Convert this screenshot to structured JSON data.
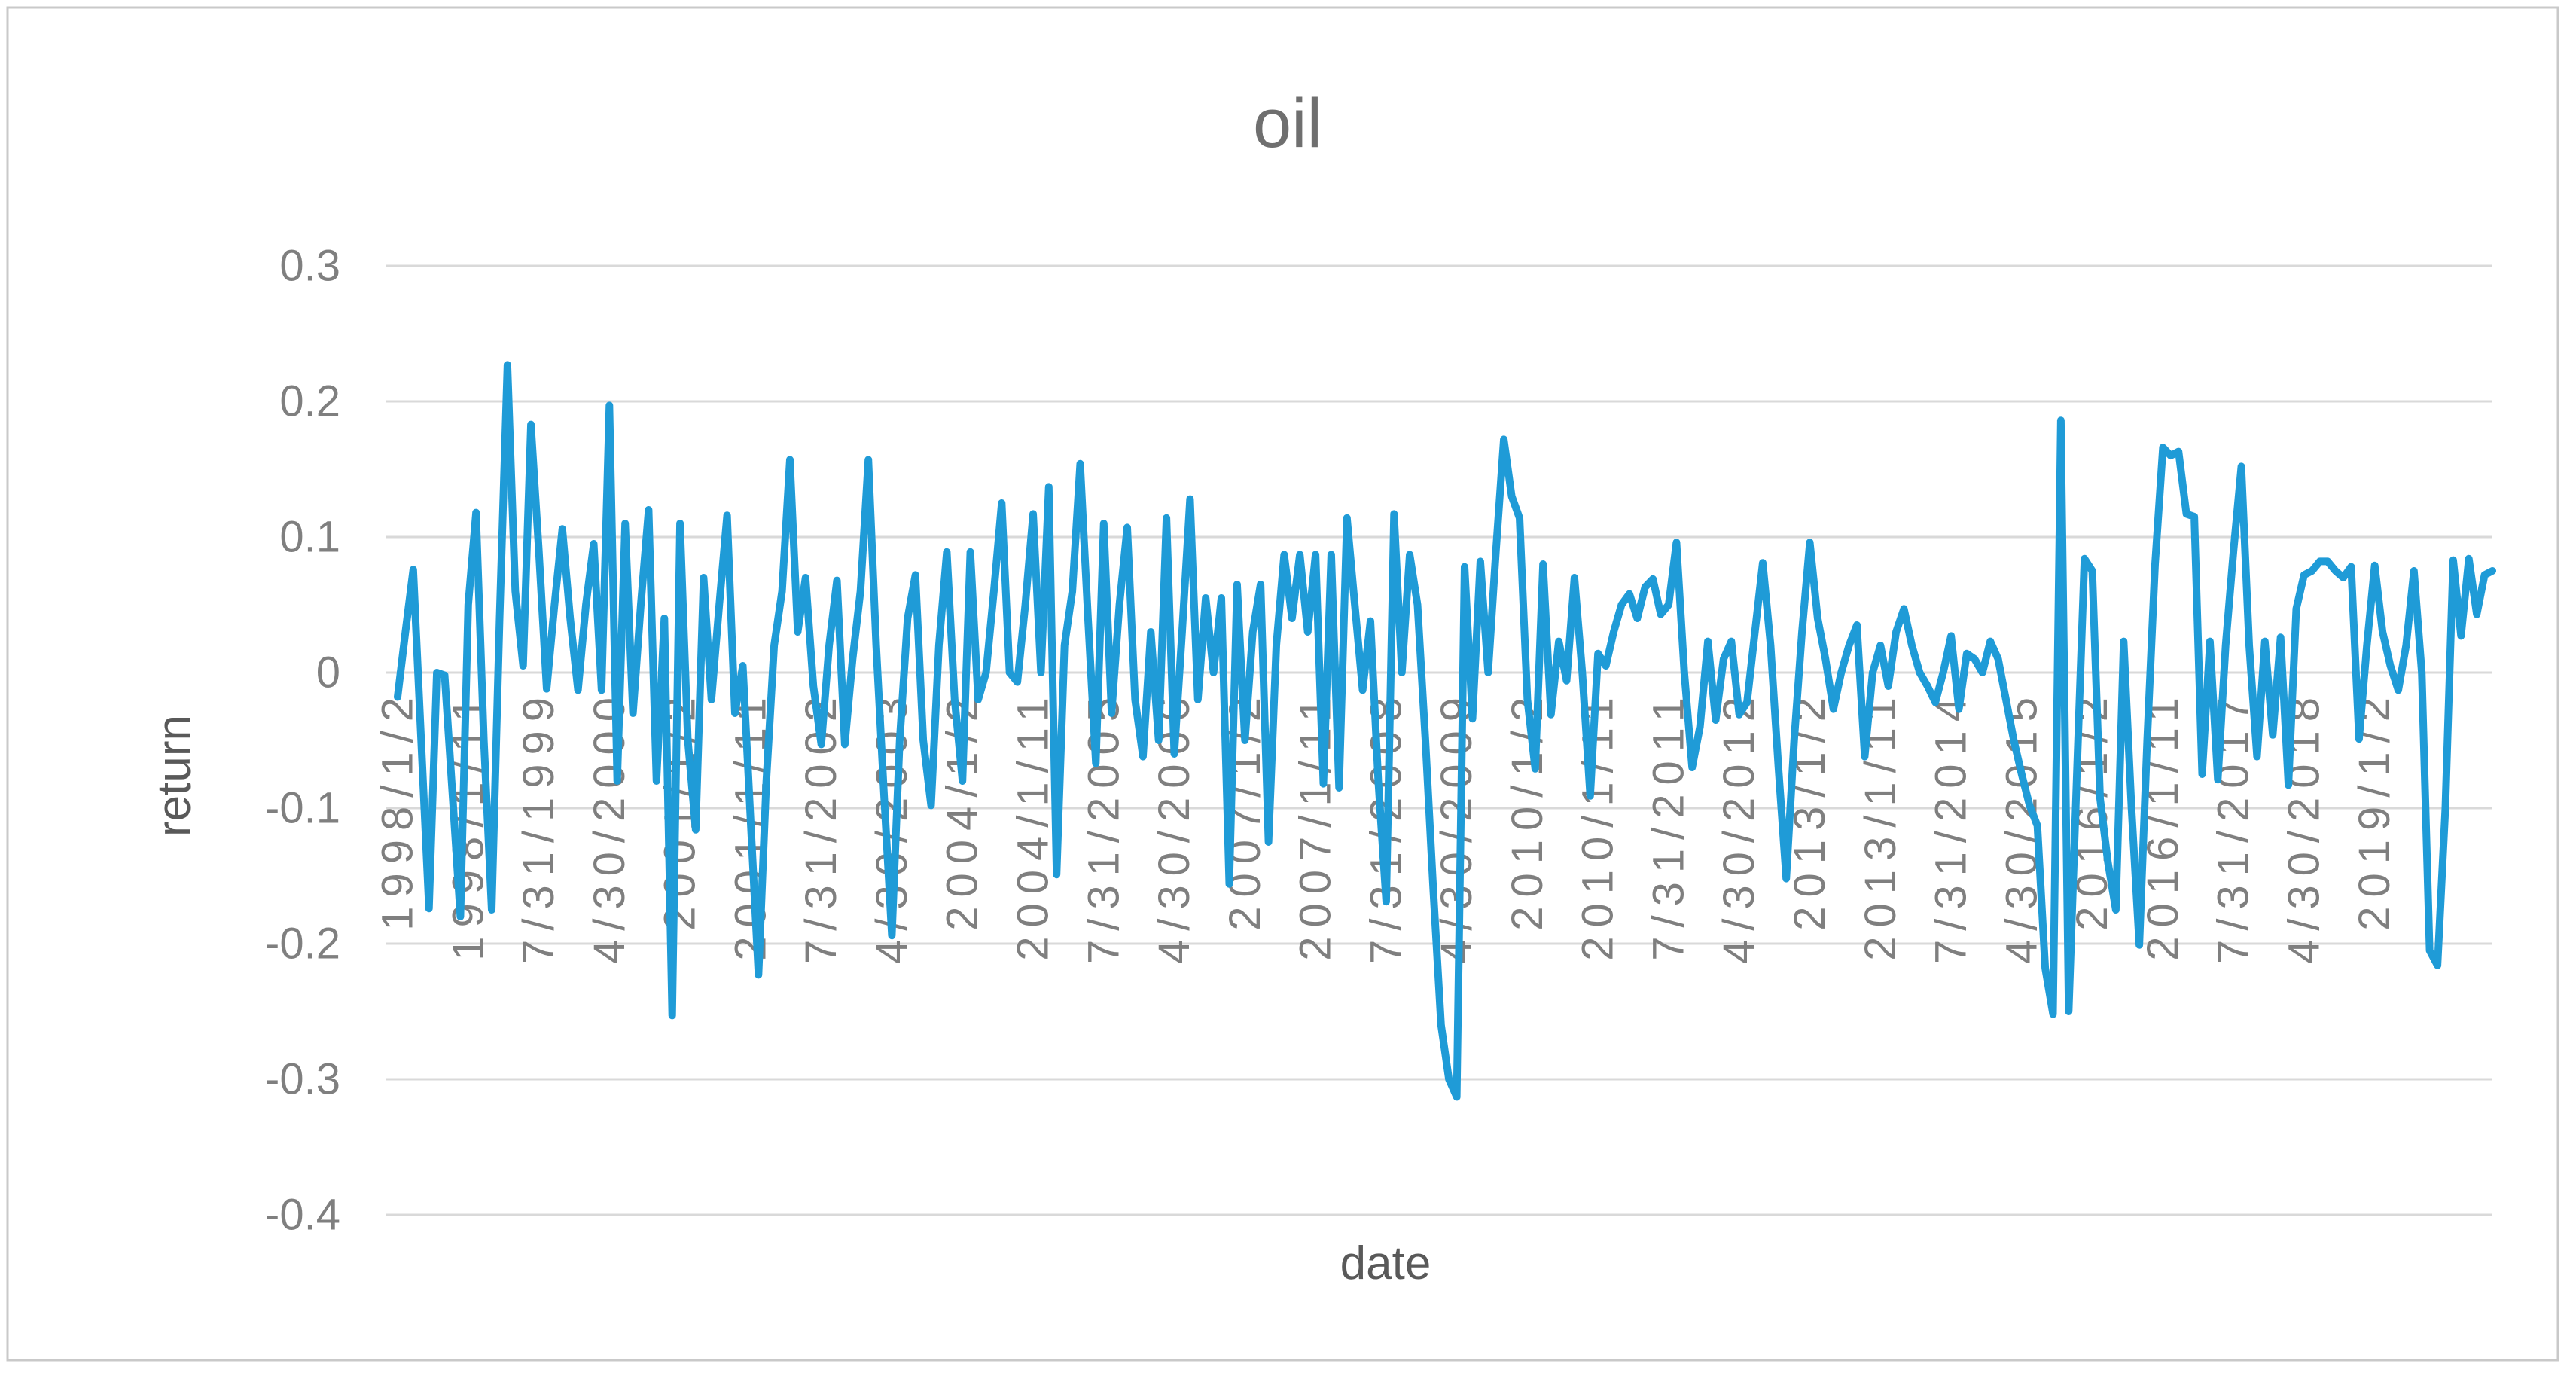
{
  "chart_data": {
    "type": "line",
    "title": "oil",
    "xlabel": "date",
    "ylabel": "return",
    "ylim": [
      -0.4,
      0.3
    ],
    "y_tick_step": 0.1,
    "y_ticks": [
      "0.3",
      "0.2",
      "0.1",
      "0",
      "-0.1",
      "-0.2",
      "-0.3",
      "-0.4"
    ],
    "y_tick_values": [
      0.3,
      0.2,
      0.1,
      0,
      -0.1,
      -0.2,
      -0.3,
      -0.4
    ],
    "x_tick_labels": [
      "1998/1/2",
      "1998/1/11",
      "7/31/1999",
      "4/30/2000",
      "2001/1/2",
      "2001/1/11",
      "7/31/2002",
      "4/30/2003",
      "2004/1/2",
      "2004/1/11",
      "7/31/2005",
      "4/30/2006",
      "2007/1/2",
      "2007/1/11",
      "7/31/2008",
      "4/30/2009",
      "2010/1/2",
      "2010/1/11",
      "7/31/2011",
      "4/30/2012",
      "2013/1/2",
      "2013/1/11",
      "7/31/2014",
      "4/30/2015",
      "2016/1/2",
      "2016/1/11",
      "7/31/2017",
      "4/30/2018",
      "2019/1/2"
    ],
    "x_tick_interval": 9,
    "x_tick_rotation_degrees": 90,
    "grid": "horizontal-only",
    "legend": "none",
    "series": [
      {
        "name": "oil",
        "color": "#1F9BD7",
        "values": [
          -0.018,
          0.03,
          0.076,
          -0.05,
          -0.174,
          0.0,
          -0.002,
          -0.09,
          -0.18,
          0.05,
          0.118,
          -0.05,
          -0.175,
          0.04,
          0.227,
          0.06,
          0.005,
          0.183,
          0.09,
          -0.012,
          0.05,
          0.106,
          0.04,
          -0.013,
          0.05,
          0.095,
          -0.013,
          0.197,
          -0.08,
          0.11,
          -0.03,
          0.05,
          0.12,
          -0.08,
          0.04,
          -0.253,
          0.11,
          -0.05,
          -0.116,
          0.07,
          -0.02,
          0.05,
          0.116,
          -0.03,
          0.005,
          -0.11,
          -0.223,
          -0.08,
          0.02,
          0.06,
          0.157,
          0.03,
          0.07,
          -0.01,
          -0.053,
          0.02,
          0.068,
          -0.053,
          0.01,
          0.06,
          0.157,
          0.02,
          -0.09,
          -0.194,
          -0.05,
          0.04,
          0.072,
          -0.05,
          -0.098,
          0.02,
          0.089,
          -0.02,
          -0.08,
          0.089,
          -0.02,
          0.0,
          0.06,
          0.125,
          0.0,
          -0.007,
          0.05,
          0.117,
          0.0,
          0.137,
          -0.149,
          0.02,
          0.06,
          0.154,
          0.04,
          -0.067,
          0.11,
          -0.03,
          0.05,
          0.107,
          -0.02,
          -0.062,
          0.03,
          -0.05,
          0.114,
          -0.06,
          0.03,
          0.128,
          -0.02,
          0.055,
          0.0,
          0.055,
          -0.156,
          0.065,
          -0.05,
          0.03,
          0.065,
          -0.125,
          0.02,
          0.087,
          0.04,
          0.087,
          0.03,
          0.087,
          -0.082,
          0.087,
          -0.085,
          0.114,
          0.05,
          -0.013,
          0.038,
          -0.08,
          -0.169,
          0.117,
          0.0,
          0.087,
          0.05,
          -0.05,
          -0.16,
          -0.26,
          -0.3,
          -0.313,
          0.078,
          -0.034,
          0.082,
          0.0,
          0.09,
          0.172,
          0.13,
          0.114,
          -0.02,
          -0.071,
          0.08,
          -0.031,
          0.023,
          -0.006,
          0.07,
          0.0,
          -0.091,
          0.014,
          0.005,
          0.03,
          0.05,
          0.058,
          0.04,
          0.063,
          0.069,
          0.043,
          0.05,
          0.096,
          0.0,
          -0.07,
          -0.04,
          0.023,
          -0.035,
          0.01,
          0.023,
          -0.031,
          -0.022,
          0.03,
          0.081,
          0.02,
          -0.07,
          -0.152,
          -0.05,
          0.03,
          0.096,
          0.04,
          0.01,
          -0.027,
          0.0,
          0.02,
          0.035,
          -0.062,
          0.0,
          0.02,
          -0.01,
          0.03,
          0.047,
          0.02,
          0.0,
          -0.01,
          -0.022,
          0.0,
          0.027,
          -0.027,
          0.014,
          0.01,
          0.0,
          0.023,
          0.01,
          -0.02,
          -0.05,
          -0.075,
          -0.098,
          -0.113,
          -0.218,
          -0.252,
          0.186,
          -0.25,
          -0.08,
          0.084,
          0.075,
          -0.093,
          -0.14,
          -0.175,
          0.023,
          -0.1,
          -0.201,
          -0.05,
          0.08,
          0.166,
          0.16,
          0.163,
          0.117,
          0.115,
          -0.075,
          0.023,
          -0.079,
          0.02,
          0.09,
          0.152,
          0.02,
          -0.062,
          0.023,
          -0.046,
          0.026,
          -0.083,
          0.047,
          0.072,
          0.075,
          0.082,
          0.082,
          0.075,
          0.07,
          0.078,
          -0.049,
          0.02,
          0.079,
          0.03,
          0.005,
          -0.013,
          0.02,
          0.075,
          0.0,
          -0.205,
          -0.216,
          -0.1,
          0.083,
          0.027,
          0.084,
          0.043,
          0.072,
          0.075
        ]
      }
    ]
  },
  "style_colors": {
    "line": "#1F9BD7",
    "gridline": "#D9D9D9",
    "tick_label": "#7F7F7F",
    "axis_title": "#595959",
    "chart_title": "#6F6F6F",
    "border": "#C9C9C9",
    "background": "#FFFFFF"
  }
}
